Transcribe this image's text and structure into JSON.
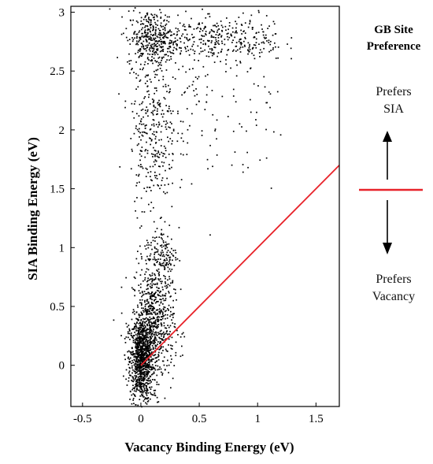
{
  "chart_data": {
    "type": "scatter",
    "title": "",
    "xlabel": "Vacancy Binding Energy (eV)",
    "ylabel": "SIA Binding Energy (eV)",
    "xlim": [
      -0.6,
      1.7
    ],
    "ylim": [
      -0.35,
      3.05
    ],
    "xticks": [
      "-0.5",
      "0",
      "0.5",
      "1",
      "1.5"
    ],
    "xtick_values": [
      -0.5,
      0,
      0.5,
      1,
      1.5
    ],
    "yticks": [
      "0",
      "0.5",
      "1",
      "1.5",
      "2",
      "2.5",
      "3"
    ],
    "ytick_values": [
      0,
      0.5,
      1,
      1.5,
      2,
      2.5,
      3
    ],
    "grid": false,
    "point_color": "#000000",
    "line": {
      "x": [
        0,
        1.7
      ],
      "y": [
        0,
        1.7
      ],
      "color": "#e8232a"
    },
    "point_clusters": [
      {
        "cx": 0.0,
        "cy": 0.05,
        "sx": 0.05,
        "sy": 0.18,
        "n": 900
      },
      {
        "cx": 0.1,
        "cy": 0.35,
        "sx": 0.09,
        "sy": 0.25,
        "n": 700
      },
      {
        "cx": 0.17,
        "cy": 0.95,
        "sx": 0.07,
        "sy": 0.13,
        "n": 150
      },
      {
        "cx": 0.1,
        "cy": 2.78,
        "sx": 0.11,
        "sy": 0.12,
        "n": 380
      },
      {
        "cx": 0.5,
        "cy": 2.78,
        "sx": 0.18,
        "sy": 0.11,
        "n": 160
      },
      {
        "cx": 0.9,
        "cy": 2.78,
        "sx": 0.16,
        "sy": 0.1,
        "n": 150
      },
      {
        "cx": 0.1,
        "cy": 2.0,
        "sx": 0.1,
        "sy": 0.35,
        "n": 320
      },
      {
        "cx": 0.5,
        "cy": 2.2,
        "sx": 0.25,
        "sy": 0.4,
        "n": 110
      },
      {
        "cx": 1.0,
        "cy": 2.1,
        "sx": 0.12,
        "sy": 0.3,
        "n": 30
      }
    ]
  },
  "legend": {
    "title_line1": "GB Site",
    "title_line2": "Preference",
    "sia_line1": "Prefers",
    "sia_line2": "SIA",
    "vac_line1": "Prefers",
    "vac_line2": "Vacancy",
    "marker_color": "#e8232a"
  }
}
